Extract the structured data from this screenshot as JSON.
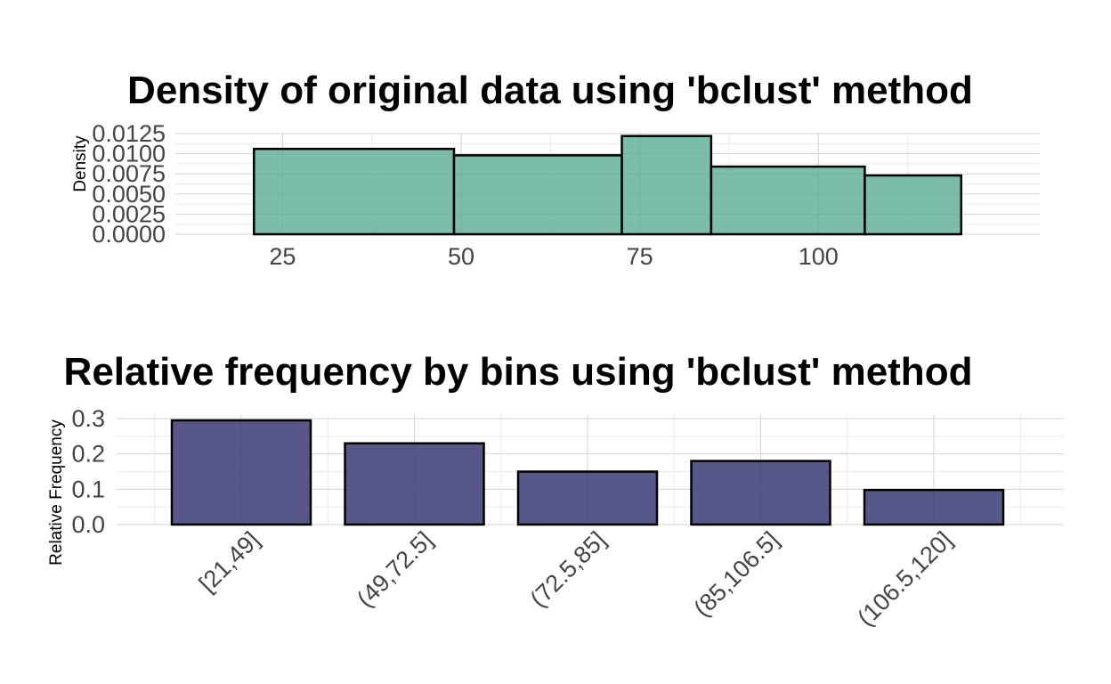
{
  "colors": {
    "density_fill": "#5aad95",
    "freq_fill": "#3b3a75",
    "bar_stroke": "#000000",
    "grid_major": "#d3d3d3",
    "grid_minor": "#ebebeb",
    "background": "#ffffff"
  },
  "chart_data": [
    {
      "type": "bar",
      "title": "Density of original data using 'bclust' method",
      "xlabel": "",
      "ylabel": "Density",
      "xlim": [
        10,
        131
      ],
      "ylim": [
        0,
        0.0125
      ],
      "x_ticks": [
        25,
        50,
        75,
        100
      ],
      "x_tick_labels": [
        "25",
        "50",
        "75",
        "100"
      ],
      "y_ticks": [
        0,
        0.0025,
        0.005,
        0.0075,
        0.01,
        0.0125
      ],
      "y_tick_labels": [
        "0.0000",
        "0.0025",
        "0.0050",
        "0.0075",
        "0.0100",
        "0.0125"
      ],
      "grid": true,
      "bins": [
        {
          "start": 21,
          "end": 49,
          "value": 0.0106
        },
        {
          "start": 49,
          "end": 72.5,
          "value": 0.0098
        },
        {
          "start": 72.5,
          "end": 85,
          "value": 0.0122
        },
        {
          "start": 85,
          "end": 106.5,
          "value": 0.0084
        },
        {
          "start": 106.5,
          "end": 120,
          "value": 0.0073
        }
      ]
    },
    {
      "type": "bar",
      "title": "Relative frequency by bins using 'bclust' method",
      "xlabel": "",
      "ylabel": "Relative Frequency",
      "ylim": [
        0,
        0.3
      ],
      "y_ticks": [
        0,
        0.1,
        0.2,
        0.3
      ],
      "y_tick_labels": [
        "0.0",
        "0.1",
        "0.2",
        "0.3"
      ],
      "grid": true,
      "categories": [
        "[21,49]",
        "(49,72.5]",
        "(72.5,85]",
        "(85,106.5]",
        "(106.5,120]"
      ],
      "values": [
        0.295,
        0.23,
        0.15,
        0.18,
        0.098
      ]
    }
  ]
}
